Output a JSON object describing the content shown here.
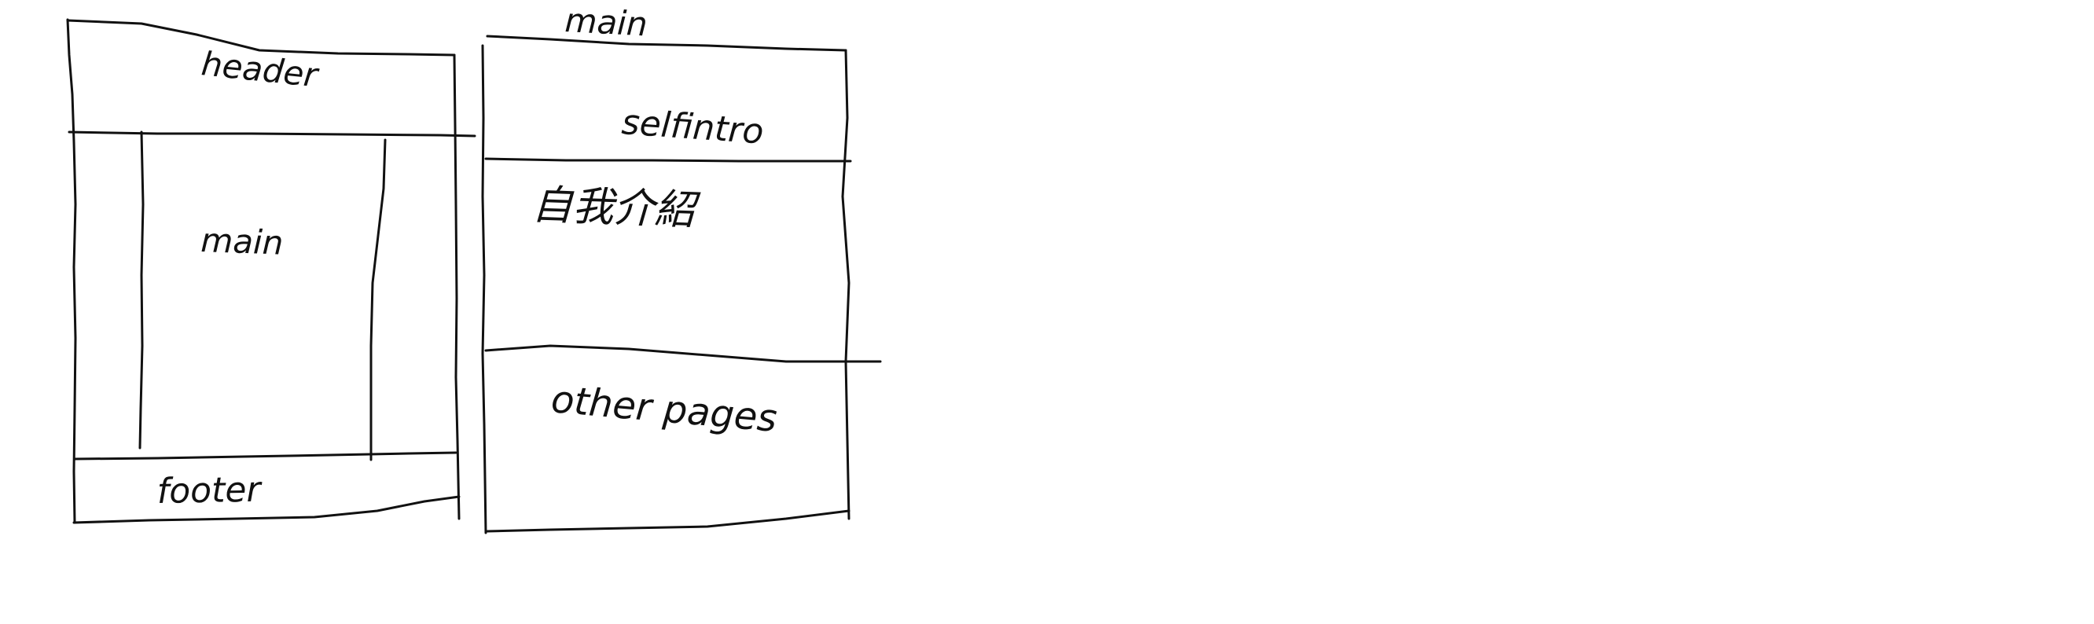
{
  "canvas": {
    "background": "#ffffff",
    "ink": "#111111"
  },
  "wireframe_left": {
    "header_label": "header",
    "main_label": "main",
    "footer_label": "footer"
  },
  "wireframe_right": {
    "title_label": "main",
    "intro_label": "selfintro",
    "intro_text_label": "自我介紹",
    "other_label": "other pages"
  }
}
